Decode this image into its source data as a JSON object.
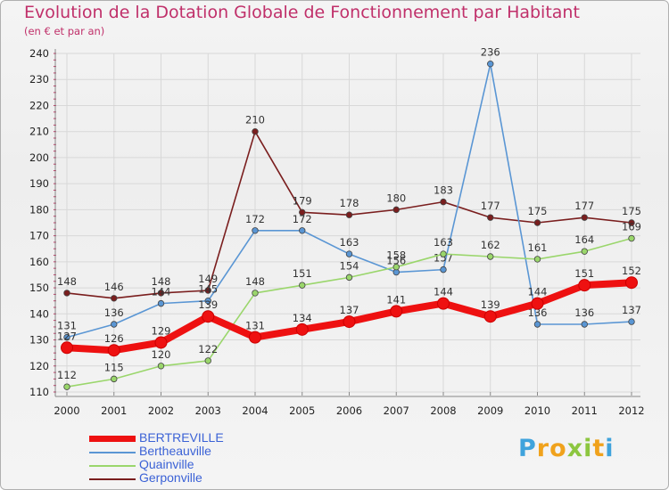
{
  "colors": {
    "title": "#c0306a",
    "axis": "#888888",
    "grid": "#d8d8d8",
    "tick_text": "#222222",
    "value_text": "#333333",
    "legend_text": "#3b62d6"
  },
  "logo": {
    "text": "Proxiti",
    "letters": [
      {
        "ch": "P",
        "color": "#3fa3dc"
      },
      {
        "ch": "r",
        "color": "#f0a21c"
      },
      {
        "ch": "o",
        "color": "#f0a21c"
      },
      {
        "ch": "x",
        "color": "#8cc63f"
      },
      {
        "ch": "i",
        "color": "#8cc63f"
      },
      {
        "ch": "t",
        "color": "#f0a21c"
      },
      {
        "ch": "i",
        "color": "#3fa3dc"
      }
    ]
  },
  "chart_data": {
    "type": "line",
    "title": "Evolution de la Dotation Globale de Fonctionnement par Habitant",
    "subtitle": "(en € et par an)",
    "xlabel": "",
    "ylabel": "",
    "categories": [
      "2000",
      "2001",
      "2002",
      "2003",
      "2004",
      "2005",
      "2006",
      "2007",
      "2008",
      "2009",
      "2010",
      "2011",
      "2012"
    ],
    "ylim": [
      110,
      240
    ],
    "yticks": [
      110,
      120,
      130,
      140,
      150,
      160,
      170,
      180,
      190,
      200,
      210,
      220,
      230,
      240
    ],
    "grid": true,
    "legend_position": "bottom-left",
    "series": [
      {
        "name": "Gerponville",
        "color": "#7a1e1e",
        "bold": false,
        "values": [
          148,
          146,
          148,
          149,
          210,
          179,
          178,
          180,
          183,
          177,
          175,
          177,
          175
        ]
      },
      {
        "name": "Bertheauville",
        "color": "#5a96d4",
        "bold": false,
        "values": [
          131,
          136,
          144,
          145,
          172,
          172,
          163,
          156,
          157,
          236,
          136,
          136,
          137
        ]
      },
      {
        "name": "Quainville",
        "color": "#9ad66b",
        "bold": false,
        "values": [
          112,
          115,
          120,
          122,
          148,
          151,
          154,
          158,
          163,
          162,
          161,
          164,
          169
        ]
      },
      {
        "name": "BERTREVILLE",
        "color": "#ee1111",
        "bold": true,
        "values": [
          127,
          126,
          129,
          139,
          131,
          134,
          137,
          141,
          144,
          139,
          144,
          151,
          152
        ]
      }
    ],
    "legend_order": [
      "BERTREVILLE",
      "Bertheauville",
      "Quainville",
      "Gerponville"
    ]
  }
}
